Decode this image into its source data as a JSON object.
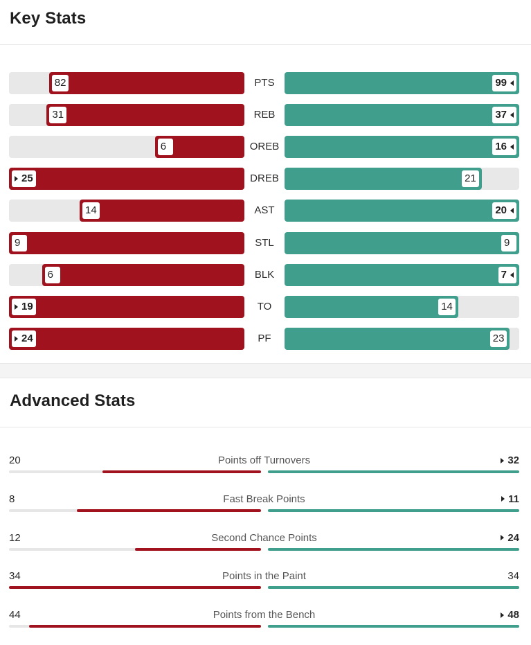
{
  "key_stats": {
    "title": "Key Stats",
    "rows": [
      {
        "label": "PTS",
        "left": 82,
        "right": 99,
        "left_fill": 0.83,
        "right_fill": 1.0
      },
      {
        "label": "REB",
        "left": 31,
        "right": 37,
        "left_fill": 0.84,
        "right_fill": 1.0
      },
      {
        "label": "OREB",
        "left": 6,
        "right": 16,
        "left_fill": 0.38,
        "right_fill": 1.0
      },
      {
        "label": "DREB",
        "left": 25,
        "right": 21,
        "left_fill": 1.0,
        "right_fill": 0.84
      },
      {
        "label": "AST",
        "left": 14,
        "right": 20,
        "left_fill": 0.7,
        "right_fill": 1.0
      },
      {
        "label": "STL",
        "left": 9,
        "right": 9,
        "left_fill": 1.0,
        "right_fill": 1.0
      },
      {
        "label": "BLK",
        "left": 6,
        "right": 7,
        "left_fill": 0.86,
        "right_fill": 1.0
      },
      {
        "label": "TO",
        "left": 19,
        "right": 14,
        "left_fill": 1.0,
        "right_fill": 0.74
      },
      {
        "label": "PF",
        "left": 24,
        "right": 23,
        "left_fill": 1.0,
        "right_fill": 0.96
      }
    ]
  },
  "advanced_stats": {
    "title": "Advanced Stats",
    "rows": [
      {
        "label": "Points off Turnovers",
        "left": 20,
        "right": 32,
        "left_fill": 0.63,
        "right_fill": 1.0
      },
      {
        "label": "Fast Break Points",
        "left": 8,
        "right": 11,
        "left_fill": 0.73,
        "right_fill": 1.0
      },
      {
        "label": "Second Chance Points",
        "left": 12,
        "right": 24,
        "left_fill": 0.5,
        "right_fill": 1.0
      },
      {
        "label": "Points in the Paint",
        "left": 34,
        "right": 34,
        "left_fill": 1.0,
        "right_fill": 1.0
      },
      {
        "label": "Points from the Bench",
        "left": 44,
        "right": 48,
        "left_fill": 0.92,
        "right_fill": 1.0
      }
    ]
  },
  "colors": {
    "left_team": "#a0121d",
    "right_team": "#3f9e8c",
    "track": "#e8e8e8"
  },
  "icons": {
    "leader_marker": "triangle-pointer-icon"
  }
}
